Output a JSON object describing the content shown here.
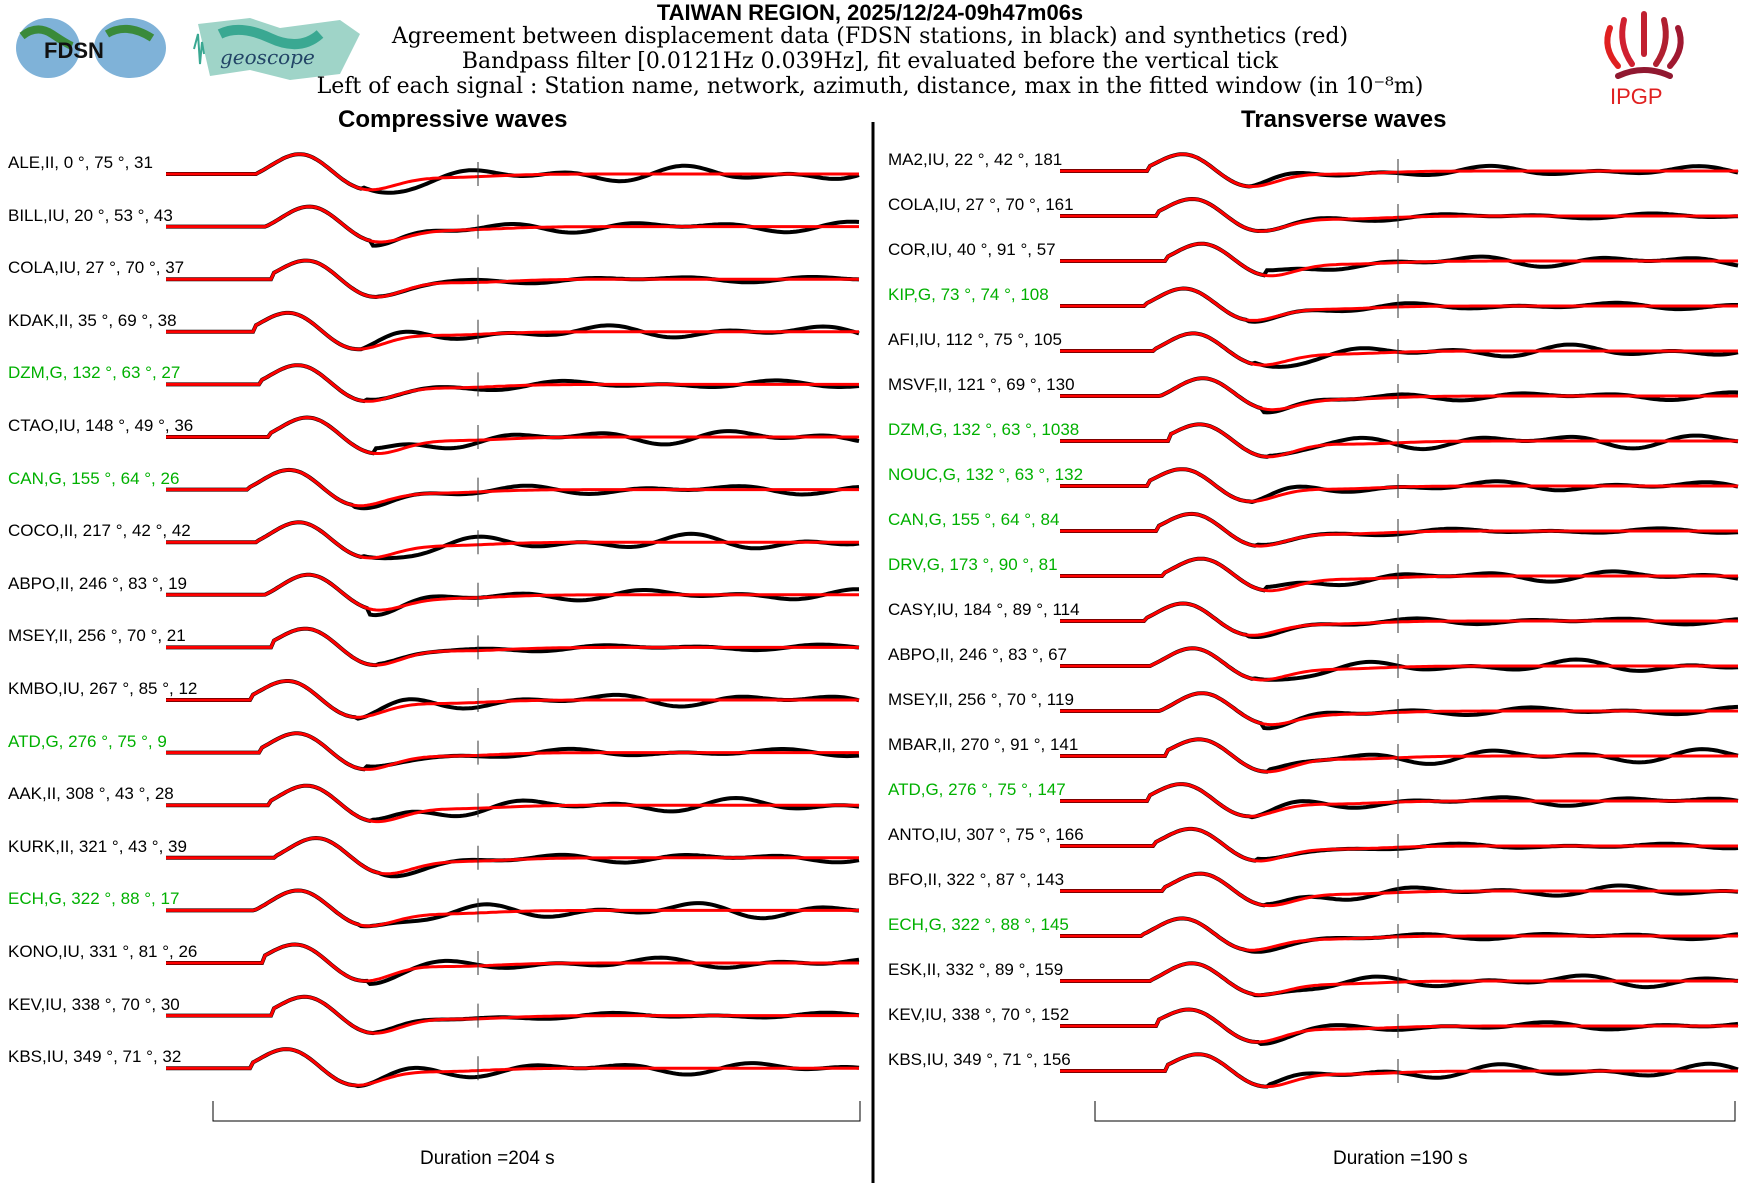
{
  "header": {
    "title": "TAIWAN REGION, 2025/12/24-09h47m06s",
    "line1": "Agreement between displacement data (FDSN stations, in black) and synthetics (red)",
    "line2": "Bandpass filter [0.0121Hz 0.039Hz], fit evaluated before the vertical tick",
    "line3": "Left of each signal : Station name, network, azimuth, distance, max in the fitted window (in 10⁻⁸m)"
  },
  "logos": {
    "fdsn": "FDSN",
    "geoscope": "geoscope",
    "ipgp": "IPGP"
  },
  "colors": {
    "data": "#000000",
    "synthetic": "#ff0000",
    "geoscope_station": "#00b000"
  },
  "chart_data": [
    {
      "type": "line",
      "title": "Compressive waves",
      "duration_label": "Duration =204 s",
      "duration_s": 204,
      "stations": [
        {
          "label": "ALE,II, 0 °, 75 °, 31",
          "geoscope": false
        },
        {
          "label": "BILL,IU, 20 °, 53 °, 43",
          "geoscope": false
        },
        {
          "label": "COLA,IU, 27 °, 70 °, 37",
          "geoscope": false
        },
        {
          "label": "KDAK,II, 35 °, 69 °, 38",
          "geoscope": false
        },
        {
          "label": "DZM,G, 132 °, 63 °, 27",
          "geoscope": true
        },
        {
          "label": "CTAO,IU, 148 °, 49 °, 36",
          "geoscope": false
        },
        {
          "label": "CAN,G, 155 °, 64 °, 26",
          "geoscope": true
        },
        {
          "label": "COCO,II, 217 °, 42 °, 42",
          "geoscope": false
        },
        {
          "label": "ABPO,II, 246 °, 83 °, 19",
          "geoscope": false
        },
        {
          "label": "MSEY,II, 256 °, 70 °, 21",
          "geoscope": false
        },
        {
          "label": "KMBO,IU, 267 °, 85 °, 12",
          "geoscope": false
        },
        {
          "label": "ATD,G, 276 °, 75 °, 9",
          "geoscope": true
        },
        {
          "label": "AAK,II, 308 °, 43 °, 28",
          "geoscope": false
        },
        {
          "label": "KURK,II, 321 °, 43 °, 39",
          "geoscope": false
        },
        {
          "label": "ECH,G, 322 °, 88 °, 17",
          "geoscope": true
        },
        {
          "label": "KONO,IU, 331 °, 81 °, 26",
          "geoscope": false
        },
        {
          "label": "KEV,IU, 338 °, 70 °, 30",
          "geoscope": false
        },
        {
          "label": "KBS,IU, 349 °, 71 °, 32",
          "geoscope": false
        }
      ]
    },
    {
      "type": "line",
      "title": "Transverse waves",
      "duration_label": "Duration =190 s",
      "duration_s": 190,
      "stations": [
        {
          "label": "MA2,IU, 22 °, 42 °, 181",
          "geoscope": false
        },
        {
          "label": "COLA,IU, 27 °, 70 °, 161",
          "geoscope": false
        },
        {
          "label": "COR,IU, 40 °, 91 °, 57",
          "geoscope": false
        },
        {
          "label": "KIP,G, 73 °, 74 °, 108",
          "geoscope": true
        },
        {
          "label": "AFI,IU, 112 °, 75 °, 105",
          "geoscope": false
        },
        {
          "label": "MSVF,II, 121 °, 69 °, 130",
          "geoscope": false
        },
        {
          "label": "DZM,G, 132 °, 63 °, 1038",
          "geoscope": true
        },
        {
          "label": "NOUC,G, 132 °, 63 °, 132",
          "geoscope": true
        },
        {
          "label": "CAN,G, 155 °, 64 °, 84",
          "geoscope": true
        },
        {
          "label": "DRV,G, 173 °, 90 °, 81",
          "geoscope": true
        },
        {
          "label": "CASY,IU, 184 °, 89 °, 114",
          "geoscope": false
        },
        {
          "label": "ABPO,II, 246 °, 83 °, 67",
          "geoscope": false
        },
        {
          "label": "MSEY,II, 256 °, 70 °, 119",
          "geoscope": false
        },
        {
          "label": "MBAR,II, 270 °, 91 °, 141",
          "geoscope": false
        },
        {
          "label": "ATD,G, 276 °, 75 °, 147",
          "geoscope": true
        },
        {
          "label": "ANTO,IU, 307 °, 75 °, 166",
          "geoscope": false
        },
        {
          "label": "BFO,II, 322 °, 87 °, 143",
          "geoscope": false
        },
        {
          "label": "ECH,G, 322 °, 88 °, 145",
          "geoscope": true
        },
        {
          "label": "ESK,II, 332 °, 89 °, 159",
          "geoscope": false
        },
        {
          "label": "KEV,IU, 338 °, 70 °, 152",
          "geoscope": false
        },
        {
          "label": "KBS,IU, 349 °, 71 °, 156",
          "geoscope": false
        }
      ]
    }
  ]
}
